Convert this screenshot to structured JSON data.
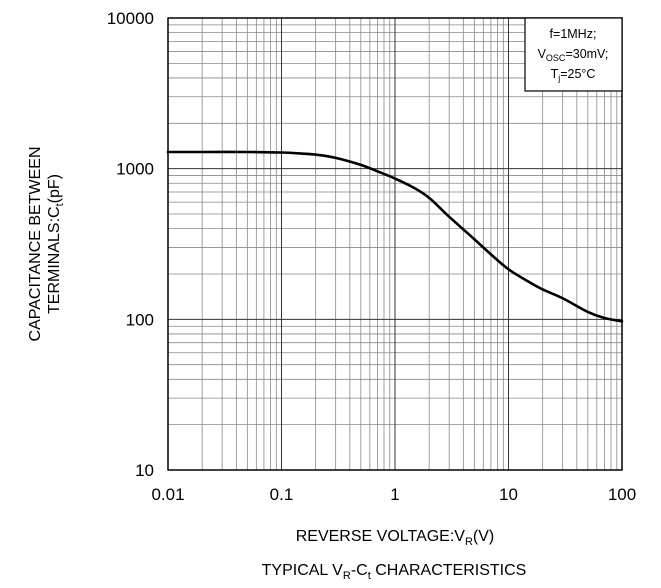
{
  "chart_data": {
    "type": "line",
    "title": "TYPICAL VR-Ct CHARACTERISTICS",
    "title_parts": {
      "a": "TYPICAL V",
      "a_sub": "R",
      "b": "-C",
      "b_sub": "t",
      "c": " CHARACTERISTICS"
    },
    "xlabel": "REVERSE VOLTAGE:VR(V)",
    "xlabel_parts": {
      "a": "REVERSE VOLTAGE:V",
      "sub": "R",
      "b": "(V)"
    },
    "ylabel_line1": "CAPACITANCE BETWEEN",
    "ylabel_line2_parts": {
      "a": "TERMINALS:C",
      "sub": "t",
      "b": "(pF)"
    },
    "x_scale": "log",
    "y_scale": "log",
    "xlim": [
      0.01,
      100
    ],
    "ylim": [
      10,
      10000
    ],
    "x_ticks": [
      0.01,
      0.1,
      1,
      10,
      100
    ],
    "x_tick_labels": [
      "0.01",
      "0.1",
      "1",
      "10",
      "100"
    ],
    "y_ticks": [
      10,
      100,
      1000,
      10000
    ],
    "y_tick_labels": [
      "10",
      "100",
      "1000",
      "10000"
    ],
    "grid": true,
    "legend": "none",
    "annotation": {
      "position": "top-right",
      "line1": "f=1MHz;",
      "line2_parts": {
        "a": "V",
        "sub": "OSC",
        "b": "=30mV;"
      },
      "line3_parts": {
        "a": "T",
        "sub": "j",
        "b": "=25°C"
      }
    },
    "series": [
      {
        "x": [
          0.01,
          0.02,
          0.05,
          0.1,
          0.15,
          0.2,
          0.3,
          0.5,
          0.7,
          1,
          1.5,
          2,
          3,
          5,
          7,
          10,
          15,
          20,
          30,
          50,
          70,
          100
        ],
        "y": [
          1290,
          1290,
          1290,
          1280,
          1260,
          1240,
          1180,
          1060,
          960,
          860,
          740,
          640,
          480,
          340,
          270,
          215,
          178,
          158,
          138,
          112,
          102,
          97
        ]
      }
    ],
    "colors": {
      "line": "#000000",
      "grid": "#888888",
      "frame": "#000000"
    }
  }
}
